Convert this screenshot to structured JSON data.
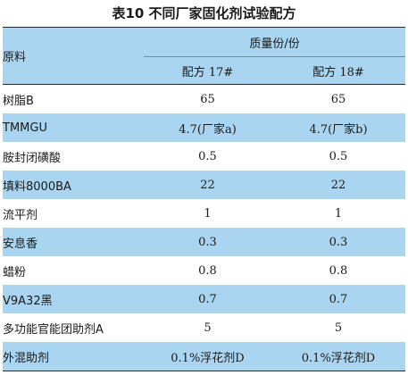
{
  "caption": "表10  不同厂家固化剂试验配方",
  "table": {
    "header": {
      "raw_material": "原料",
      "group": "质量份/份",
      "formula_17": "配方 17#",
      "formula_18": "配方 18#"
    },
    "rows": [
      {
        "name": "树脂B",
        "f17": "65",
        "f18": "65"
      },
      {
        "name": "TMMGU",
        "f17": "4.7(厂家a)",
        "f18": "4.7(厂家b)"
      },
      {
        "name": "胺封闭磺酸",
        "f17": "0.5",
        "f18": "0.5"
      },
      {
        "name": "填料8000BA",
        "f17": "22",
        "f18": "22"
      },
      {
        "name": "流平剂",
        "f17": "1",
        "f18": "1"
      },
      {
        "name": "安息香",
        "f17": "0.3",
        "f18": "0.3"
      },
      {
        "name": "蜡粉",
        "f17": "0.8",
        "f18": "0.8"
      },
      {
        "name": "V9A32黑",
        "f17": "0.7",
        "f18": "0.7"
      },
      {
        "name": "多功能官能团助剂A",
        "f17": "5",
        "f18": "5"
      },
      {
        "name": "外混助剂",
        "f17": "0.1%浮花剂D",
        "f18": "0.1%浮花剂D"
      }
    ],
    "colors": {
      "stripe": "#a9d5f0",
      "rule": "#2b2b2b"
    }
  }
}
